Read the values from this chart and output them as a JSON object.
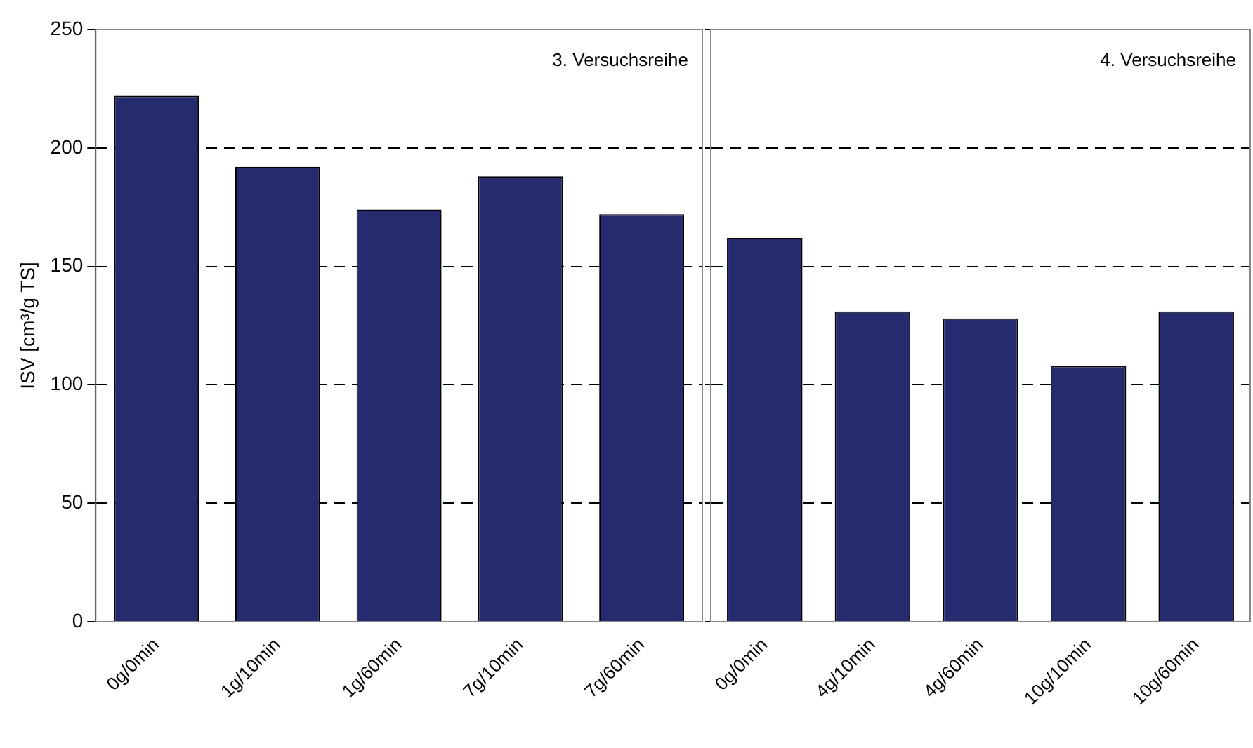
{
  "chart_data": [
    {
      "type": "bar",
      "ylabel": "ISV [cm³/g TS]",
      "annotations": [
        "3. Versuchsreihe"
      ],
      "categories": [
        "0g/0min",
        "1g/10min",
        "1g/60min",
        "7g/10min",
        "7g/60min"
      ],
      "values": [
        222,
        192,
        174,
        188,
        172
      ],
      "color": "#262a6e",
      "ylim": [
        0,
        250
      ],
      "yticks": [
        0,
        50,
        100,
        150,
        200,
        250
      ],
      "grid": "y"
    },
    {
      "type": "bar",
      "annotations": [
        "4. Versuchsreihe"
      ],
      "categories": [
        "0g/0min",
        "4g/10min",
        "4g/60min",
        "10g/10min",
        "10g/60min"
      ],
      "values": [
        162,
        131,
        128,
        108,
        131
      ],
      "color": "#262a6e",
      "ylim": [
        0,
        250
      ],
      "yticks": [
        0,
        50,
        100,
        150,
        200,
        250
      ],
      "grid": "y",
      "tick_labels": "x"
    }
  ]
}
